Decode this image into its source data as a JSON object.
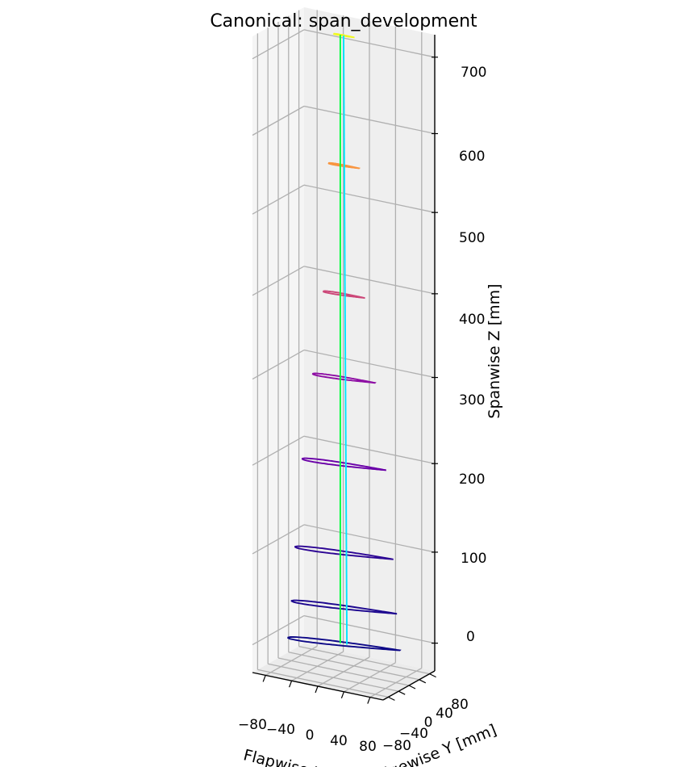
{
  "chart_data": {
    "type": "line",
    "projection": "3d",
    "title": "Canonical: span_development",
    "xlabel": "Flapwise X [mm]",
    "ylabel": "Edgewise Y [mm]",
    "zlabel": "Spanwise Z [mm]",
    "x_ticks": [
      "−80",
      "−40",
      "0",
      "40",
      "80"
    ],
    "y_ticks": [
      "−80",
      "−40",
      "0",
      "40",
      "80"
    ],
    "z_ticks": [
      "0",
      "100",
      "200",
      "300",
      "400",
      "500",
      "600",
      "700"
    ],
    "xlim": [
      -100,
      100
    ],
    "ylim": [
      -100,
      100
    ],
    "zlim": [
      -30,
      730
    ],
    "grid": true,
    "series": [
      {
        "kind": "section",
        "z": 0,
        "chord": 160,
        "twist_deg": 20,
        "thickness": 0.14,
        "color": "#0d0887"
      },
      {
        "kind": "section",
        "z": 40,
        "chord": 150,
        "twist_deg": 18,
        "thickness": 0.14,
        "color": "#1c068f"
      },
      {
        "kind": "section",
        "z": 100,
        "chord": 140,
        "twist_deg": 17,
        "thickness": 0.15,
        "color": "#2c0594"
      },
      {
        "kind": "section",
        "z": 200,
        "chord": 120,
        "twist_deg": 15,
        "thickness": 0.16,
        "color": "#6a00a8"
      },
      {
        "kind": "section",
        "z": 300,
        "chord": 90,
        "twist_deg": 13,
        "thickness": 0.17,
        "color": "#8e0ea4"
      },
      {
        "kind": "section",
        "z": 400,
        "chord": 60,
        "twist_deg": 10,
        "thickness": 0.18,
        "color": "#cc4778"
      },
      {
        "kind": "section",
        "z": 560,
        "chord": 45,
        "twist_deg": 8,
        "thickness": 0.18,
        "color": "#f89540"
      },
      {
        "kind": "section",
        "z": 730,
        "chord": 30,
        "twist_deg": 6,
        "thickness": 0.15,
        "color": "#f0f921"
      },
      {
        "kind": "spine",
        "color": "#00ff3c",
        "points": [
          [
            -5,
            0,
            0
          ],
          [
            -5,
            0,
            730
          ]
        ]
      },
      {
        "kind": "spine",
        "color": "#00e5ff",
        "points": [
          [
            5,
            0,
            0
          ],
          [
            0,
            0,
            730
          ]
        ]
      }
    ]
  }
}
